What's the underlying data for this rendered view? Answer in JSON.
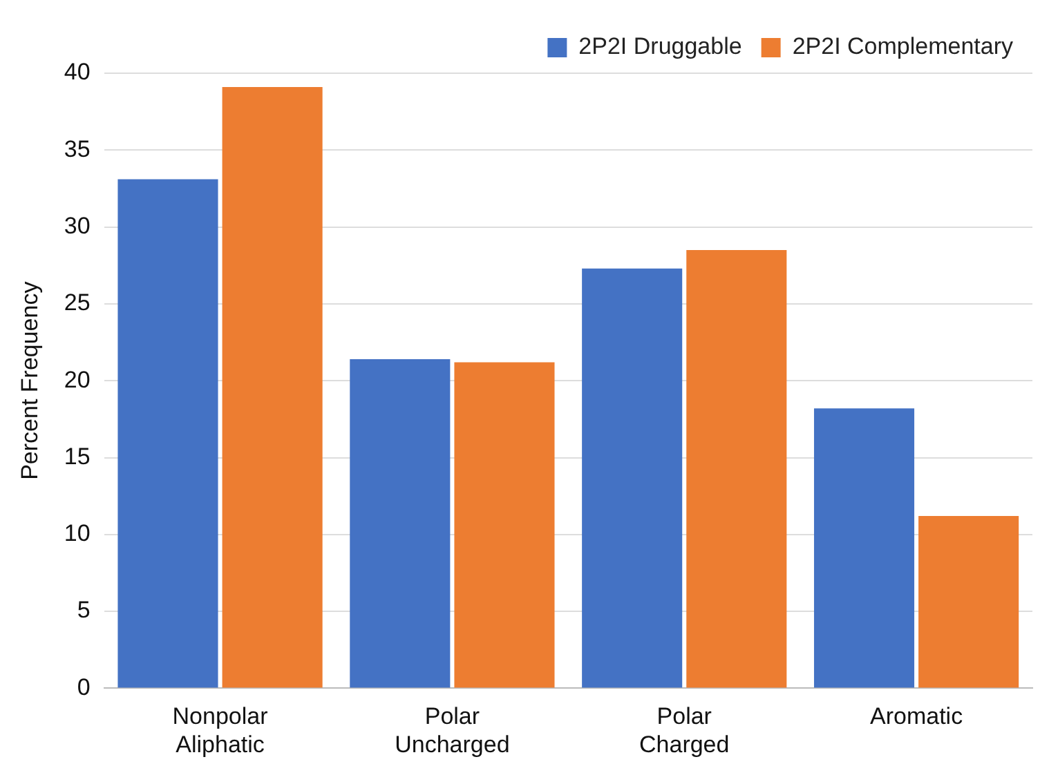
{
  "chart_data": {
    "type": "bar",
    "ylabel": "Percent Frequency",
    "categories": [
      "Nonpolar Aliphatic",
      "Polar Uncharged",
      "Polar Charged",
      "Aromatic"
    ],
    "series": [
      {
        "name": "2P2I Druggable",
        "color": "#4472c4",
        "values": [
          33.1,
          21.4,
          27.3,
          18.2
        ]
      },
      {
        "name": "2P2I Complementary",
        "color": "#ed7d31",
        "values": [
          39.1,
          21.2,
          28.5,
          11.2
        ]
      }
    ],
    "ylim": [
      0,
      40
    ],
    "yticks": [
      0,
      5,
      10,
      15,
      20,
      25,
      30,
      35,
      40
    ],
    "grid": "y",
    "legend": "top right"
  }
}
